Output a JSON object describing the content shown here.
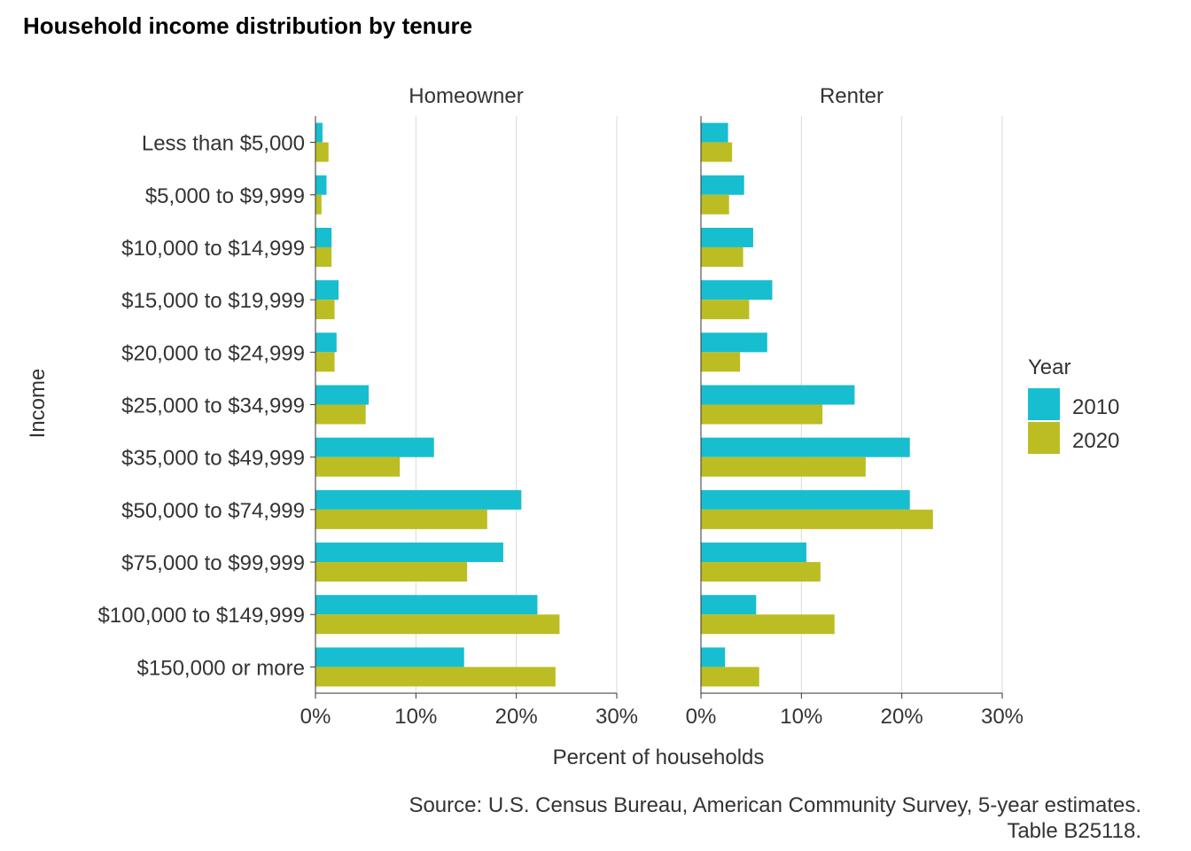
{
  "chart_data": {
    "type": "bar",
    "orientation": "horizontal",
    "title": "Household income distribution by tenure",
    "xlabel": "Percent of households",
    "ylabel": "Income",
    "xlim": [
      0,
      0.3
    ],
    "x_ticks": [
      0,
      0.1,
      0.2,
      0.3
    ],
    "x_tick_labels": [
      "0%",
      "10%",
      "20%",
      "30%"
    ],
    "grid": "vertical major",
    "legend_position": "right",
    "legend_title": "Year",
    "caption": [
      "Source: U.S. Census Bureau, American Community Survey, 5-year estimates.",
      "Table B25118."
    ],
    "categories": [
      "Less than $5,000",
      "$5,000 to $9,999",
      "$10,000 to $14,999",
      "$15,000 to $19,999",
      "$20,000 to $24,999",
      "$25,000 to $34,999",
      "$35,000 to $49,999",
      "$50,000 to $74,999",
      "$75,000 to $99,999",
      "$100,000 to $149,999",
      "$150,000 or more"
    ],
    "facets": [
      {
        "name": "Homeowner",
        "series": [
          {
            "name": "2010",
            "color": "#17BECF",
            "values": [
              0.007,
              0.011,
              0.016,
              0.023,
              0.021,
              0.053,
              0.118,
              0.205,
              0.187,
              0.221,
              0.148
            ]
          },
          {
            "name": "2020",
            "color": "#BCBD22",
            "values": [
              0.013,
              0.006,
              0.016,
              0.019,
              0.019,
              0.05,
              0.084,
              0.171,
              0.151,
              0.243,
              0.239
            ]
          }
        ]
      },
      {
        "name": "Renter",
        "series": [
          {
            "name": "2010",
            "color": "#17BECF",
            "values": [
              0.027,
              0.043,
              0.052,
              0.071,
              0.066,
              0.153,
              0.208,
              0.208,
              0.105,
              0.055,
              0.024
            ]
          },
          {
            "name": "2020",
            "color": "#BCBD22",
            "values": [
              0.031,
              0.028,
              0.042,
              0.048,
              0.039,
              0.121,
              0.164,
              0.231,
              0.119,
              0.133,
              0.058
            ]
          }
        ]
      }
    ]
  }
}
